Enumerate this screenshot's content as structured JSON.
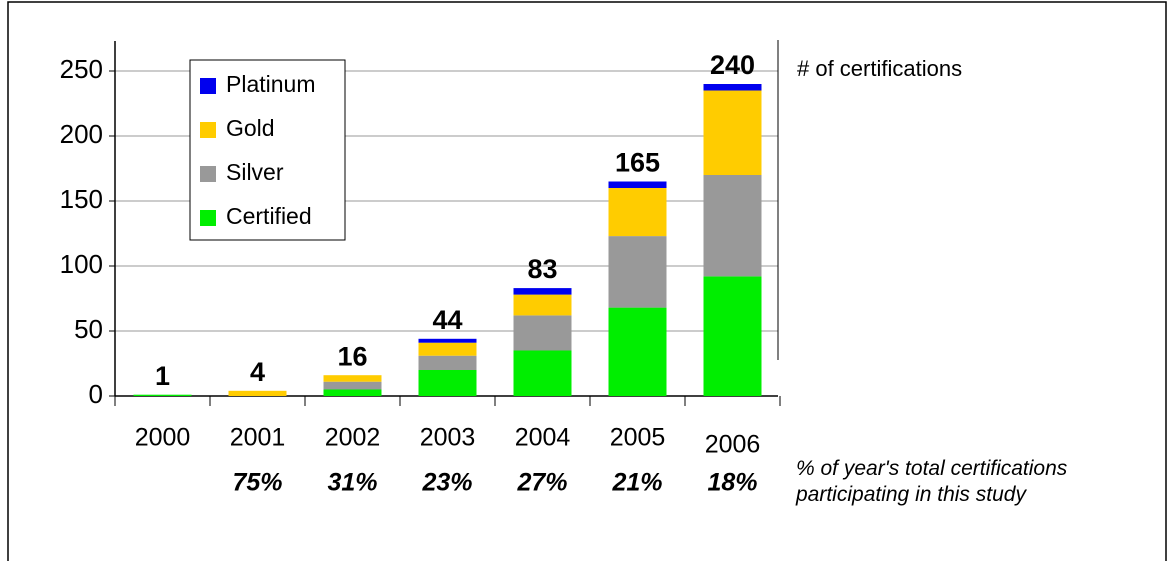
{
  "chart_data": {
    "type": "stacked_bar",
    "categories": [
      "2000",
      "2001",
      "2002",
      "2003",
      "2004",
      "2005",
      "2006"
    ],
    "series": [
      {
        "name": "Certified",
        "color": "#00ee00",
        "values": [
          1,
          0,
          5,
          20,
          35,
          68,
          92
        ]
      },
      {
        "name": "Silver",
        "color": "#999999",
        "values": [
          0,
          0,
          6,
          11,
          27,
          55,
          78
        ]
      },
      {
        "name": "Gold",
        "color": "#ffcc00",
        "values": [
          0,
          4,
          5,
          10,
          16,
          37,
          65
        ]
      },
      {
        "name": "Platinum",
        "color": "#0000ee",
        "values": [
          0,
          0,
          0,
          3,
          5,
          5,
          5
        ]
      }
    ],
    "totals": [
      1,
      4,
      16,
      44,
      83,
      165,
      240
    ],
    "participation_labels": [
      null,
      "75%",
      "31%",
      "23%",
      "27%",
      "21%",
      "18%"
    ],
    "ylim": [
      0,
      250
    ],
    "yticks": [
      0,
      50,
      100,
      150,
      200,
      250
    ],
    "grid": true,
    "y_axis_note": "# of certifications",
    "participation_note": "% of year's total certifications participating in this study"
  }
}
